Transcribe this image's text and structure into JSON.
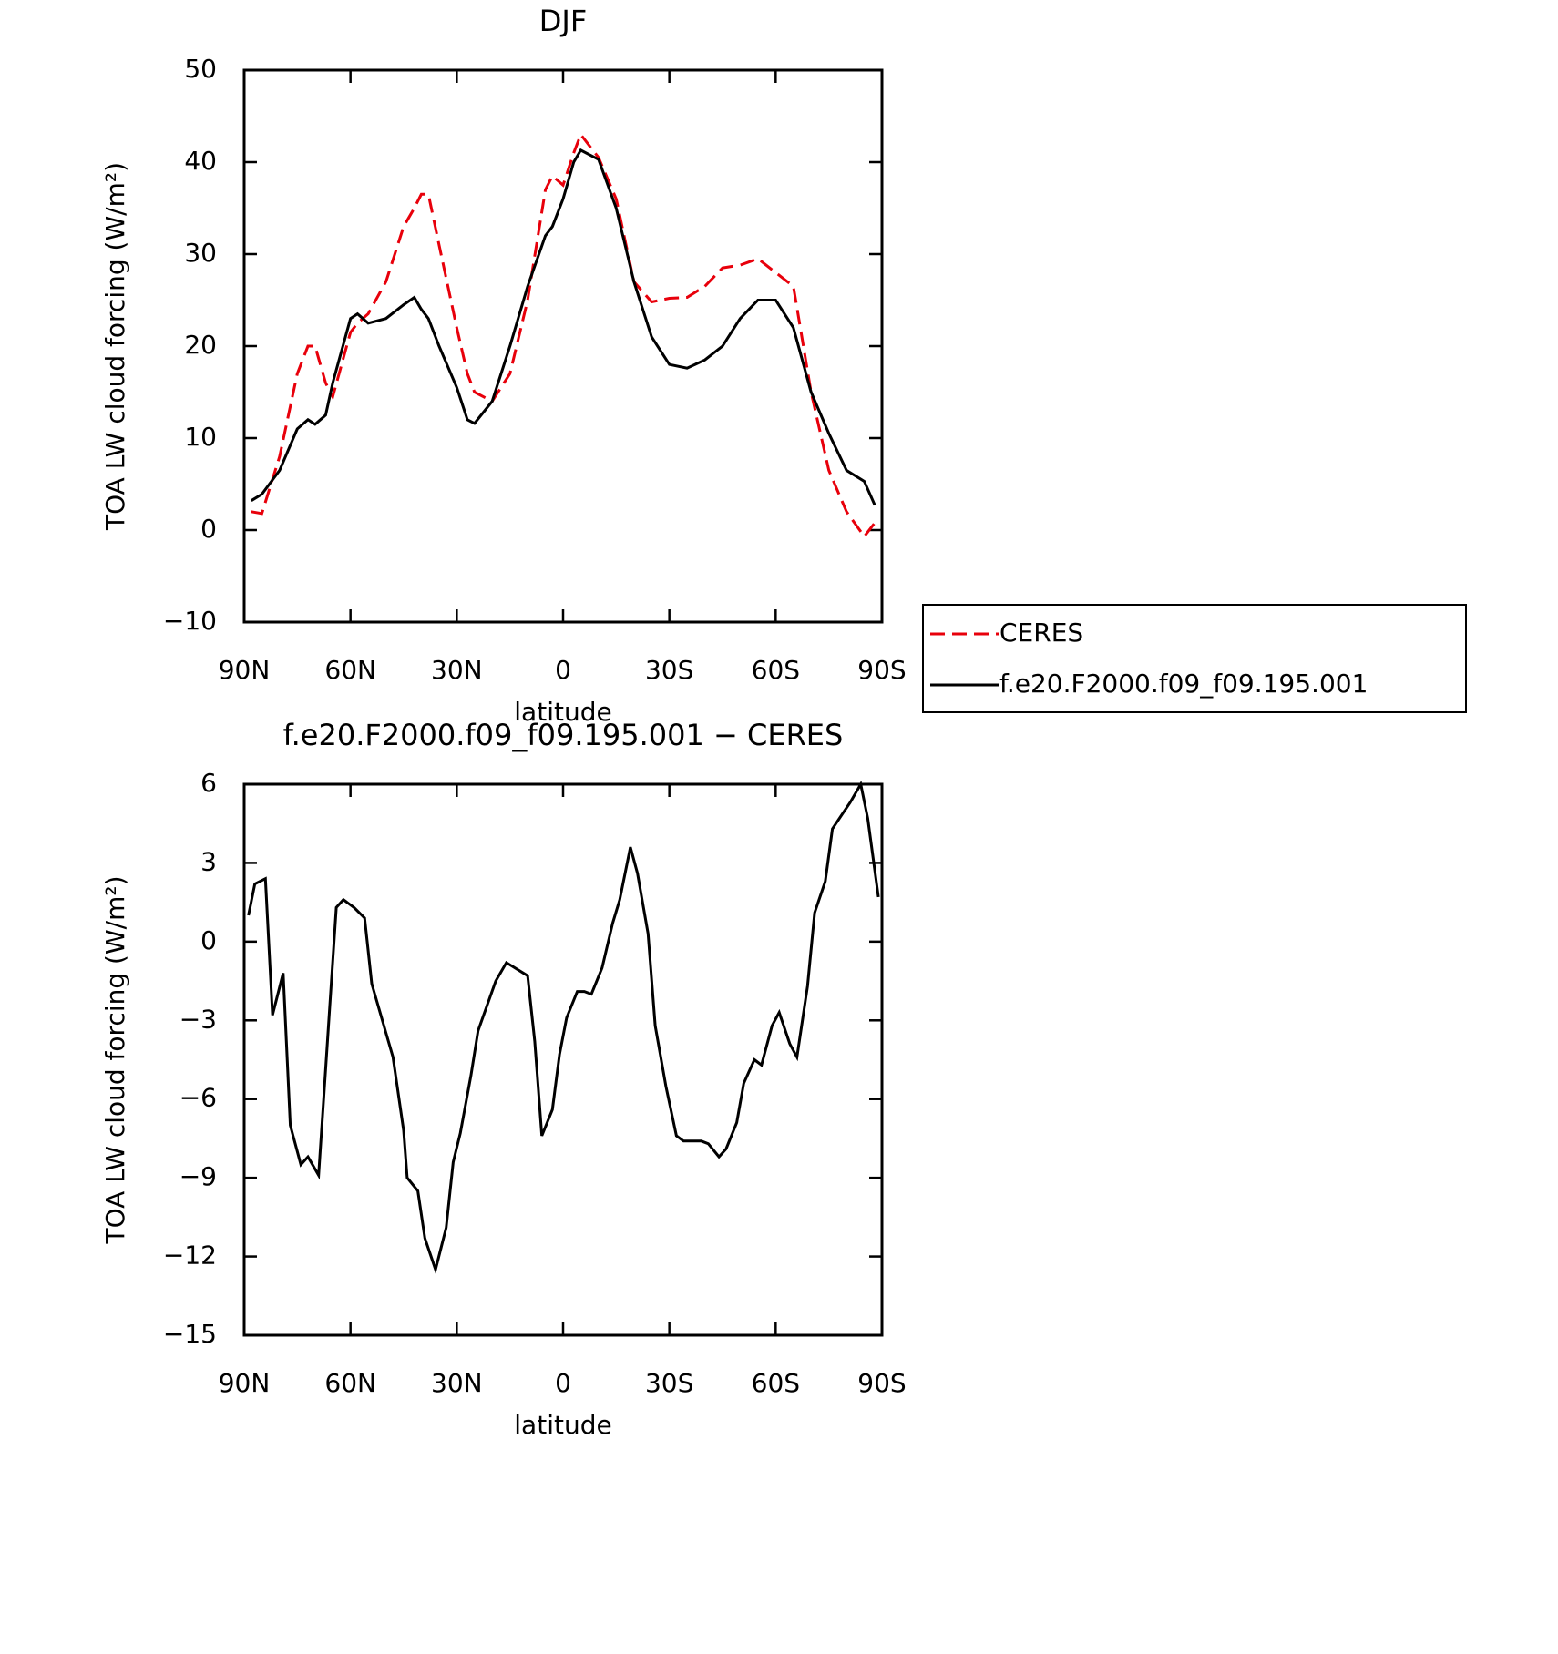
{
  "chart_data": [
    {
      "type": "line",
      "title": "DJF",
      "xlabel": "latitude",
      "ylabel": "TOA LW cloud forcing (W/m²)",
      "x": [
        88,
        85,
        80,
        75,
        72,
        70,
        67,
        65,
        60,
        58,
        55,
        50,
        45,
        42,
        40,
        38,
        35,
        30,
        27,
        25,
        20,
        15,
        10,
        5,
        3,
        0,
        -3,
        -5,
        -10,
        -15,
        -20,
        -25,
        -30,
        -35,
        -40,
        -45,
        -50,
        -55,
        -60,
        -65,
        -70,
        -75,
        -80,
        -85,
        -88
      ],
      "series": [
        {
          "name": "CERES",
          "color": "#e8000b",
          "dashed": true,
          "values": [
            2,
            1.8,
            8,
            17,
            20,
            20,
            16,
            14.5,
            21.5,
            22.5,
            23.5,
            27,
            33,
            35,
            36.5,
            36.5,
            31,
            22,
            17,
            15,
            14,
            17,
            25,
            37,
            38.5,
            37.5,
            41,
            43,
            40.5,
            36,
            27,
            24.8,
            25.2,
            25.3,
            26.5,
            28.5,
            28.8,
            29.5,
            28,
            26.5,
            15,
            6.5,
            2,
            -0.7,
            0.8
          ]
        },
        {
          "name": "f.e20.F2000.f09_f09.195.001",
          "color": "#000000",
          "dashed": false,
          "values": [
            3.2,
            3.9,
            6.5,
            11,
            12,
            11.5,
            12.5,
            16,
            23,
            23.5,
            22.5,
            23,
            24.5,
            25.3,
            24,
            23,
            20,
            15.5,
            12,
            11.6,
            14,
            20,
            26.5,
            32,
            33,
            36,
            40,
            41.3,
            40.3,
            35,
            27,
            21,
            18,
            17.6,
            18.5,
            20,
            23,
            25,
            25,
            22,
            15,
            10.5,
            6.5,
            5.3,
            2.7
          ]
        }
      ],
      "xlim": [
        90,
        -90
      ],
      "xticks": [
        {
          "value": 90,
          "label": "90N"
        },
        {
          "value": 60,
          "label": "60N"
        },
        {
          "value": 30,
          "label": "30N"
        },
        0,
        {
          "value": -30,
          "label": "30S"
        },
        {
          "value": -60,
          "label": "60S"
        },
        {
          "value": -90,
          "label": "90S"
        }
      ],
      "ylim": [
        -10,
        50
      ],
      "yticks": [
        {
          "value": -10,
          "label": "−10"
        },
        0,
        10,
        20,
        30,
        40,
        50
      ],
      "legend": "right"
    },
    {
      "type": "line",
      "title": "f.e20.F2000.f09_f09.195.001 − CERES",
      "xlabel": "latitude",
      "ylabel": "TOA LW cloud forcing (W/m²)",
      "x": [
        88.8,
        87,
        84,
        82,
        79,
        77,
        74,
        72,
        69,
        64,
        62,
        59,
        56,
        54,
        48,
        45,
        44,
        41,
        39,
        36,
        33,
        31,
        29,
        26,
        24,
        19,
        16,
        10,
        8,
        6,
        3,
        1,
        -1,
        -4,
        -6,
        -8,
        -11,
        -14,
        -16,
        -19,
        -21,
        -24,
        -26,
        -29,
        -32,
        -34,
        -39,
        -41,
        -44,
        -46,
        -49,
        -51,
        -54,
        -56,
        -59,
        -61,
        -64,
        -66,
        -69,
        -71,
        -74,
        -76,
        -79,
        -81,
        -84,
        -86,
        -89
      ],
      "series": [
        {
          "color": "#000000",
          "dashed": false,
          "values": [
            1,
            2.2,
            2.4,
            -2.8,
            -1.2,
            -7,
            -8.5,
            -8.2,
            -8.9,
            1.3,
            1.6,
            1.3,
            0.9,
            -1.6,
            -4.4,
            -7.2,
            -9,
            -9.5,
            -11.3,
            -12.5,
            -10.9,
            -8.4,
            -7.3,
            -5.1,
            -3.4,
            -1.5,
            -0.8,
            -1.3,
            -3.8,
            -7.4,
            -6.4,
            -4.3,
            -2.9,
            -1.9,
            -1.9,
            -2,
            -1,
            0.7,
            1.6,
            3.6,
            2.6,
            0.3,
            -3.2,
            -5.5,
            -7.4,
            -7.6,
            -7.6,
            -7.7,
            -8.2,
            -7.9,
            -6.9,
            -5.4,
            -4.5,
            -4.7,
            -3.2,
            -2.7,
            -3.9,
            -4.4,
            -1.7,
            1.1,
            2.3,
            4.3,
            4.9,
            5.3,
            6,
            4.7,
            1.7
          ]
        }
      ],
      "xlim": [
        90,
        -90
      ],
      "xticks": [
        {
          "value": 90,
          "label": "90N"
        },
        {
          "value": 60,
          "label": "60N"
        },
        {
          "value": 30,
          "label": "30N"
        },
        0,
        {
          "value": -30,
          "label": "30S"
        },
        {
          "value": -60,
          "label": "60S"
        },
        {
          "value": -90,
          "label": "90S"
        }
      ],
      "ylim": [
        -15,
        6
      ],
      "yticks": [
        {
          "value": -15,
          "label": "−15"
        },
        {
          "value": -12,
          "label": "−12"
        },
        {
          "value": -9,
          "label": "−9"
        },
        {
          "value": -6,
          "label": "−6"
        },
        {
          "value": -3,
          "label": "−3"
        },
        0,
        3,
        6
      ]
    }
  ]
}
